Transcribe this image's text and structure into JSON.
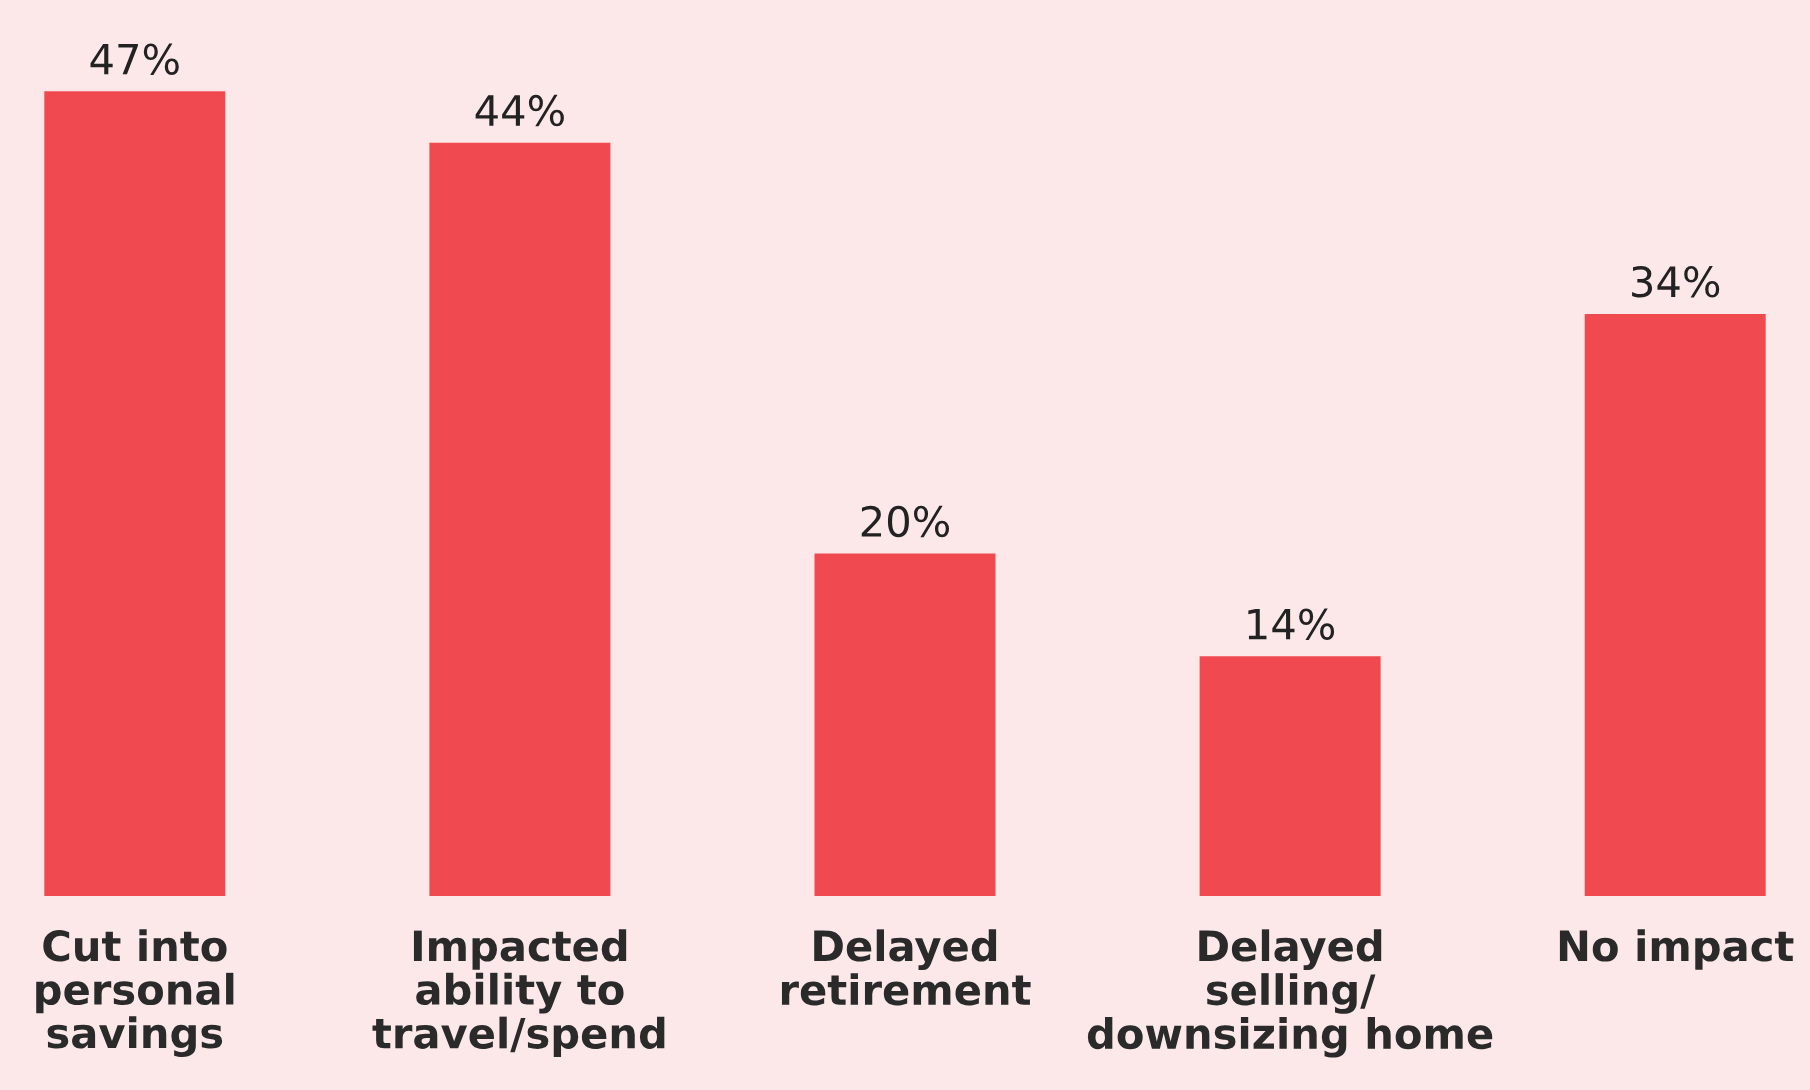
{
  "chart_data": {
    "type": "bar",
    "categories": [
      "Cut into\npersonal\nsavings",
      "Impacted\nability to\ntravel/spend",
      "Delayed\nretirement",
      "Delayed\nselling/\ndownsizing home",
      "No impact"
    ],
    "values": [
      47,
      44,
      20,
      14,
      34
    ],
    "value_labels": [
      "47%",
      "44%",
      "20%",
      "14%",
      "34%"
    ],
    "color": "#f04a50",
    "grid": false,
    "legend": false
  }
}
